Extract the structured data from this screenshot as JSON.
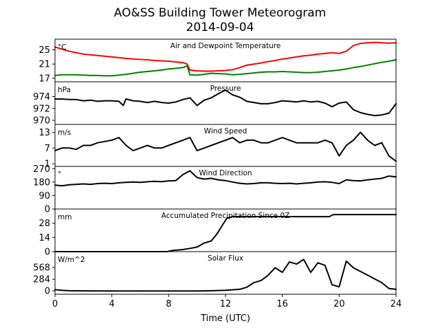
{
  "figure": {
    "title_line1": "AO&SS Building Tower Meteorogram",
    "title_line2": "2014-09-04",
    "xlabel": "Time (UTC)"
  },
  "chart_data": [
    {
      "type": "line",
      "title": "Air and Dewpoint Temperature",
      "unit": "°C",
      "ylim": [
        16,
        28
      ],
      "yticks": [
        17,
        21,
        25
      ],
      "xlim": [
        0,
        24
      ],
      "series": [
        {
          "color": "#ff0000",
          "x": [
            0,
            0.5,
            1,
            1.5,
            2,
            2.5,
            3,
            3.5,
            4,
            4.5,
            5,
            5.5,
            6,
            6.5,
            7,
            7.5,
            8,
            8.5,
            9,
            9.3,
            9.5,
            10,
            10.5,
            11,
            11.5,
            12,
            12.5,
            13,
            13.5,
            14,
            14.5,
            15,
            15.5,
            16,
            16.5,
            17,
            17.5,
            18,
            18.5,
            19,
            19.5,
            20,
            20.5,
            21,
            21.5,
            22,
            22.5,
            23,
            23.5,
            24
          ],
          "values": [
            25.8,
            25.2,
            24.6,
            24.2,
            23.8,
            23.6,
            23.4,
            23.2,
            23.0,
            22.8,
            22.6,
            22.4,
            22.3,
            22.2,
            22.0,
            21.9,
            21.8,
            21.6,
            21.4,
            21.0,
            19.3,
            19.1,
            19.0,
            19.0,
            19.1,
            19.2,
            19.4,
            20.0,
            20.7,
            21.0,
            21.3,
            21.7,
            22.0,
            22.4,
            22.7,
            23.0,
            23.3,
            23.5,
            23.8,
            24.0,
            24.2,
            24.0,
            24.6,
            26.2,
            26.8,
            27.0,
            27.1,
            27.0,
            26.9,
            27.0
          ]
        },
        {
          "color": "#008000",
          "x": [
            0,
            0.5,
            1,
            1.5,
            2,
            2.5,
            3,
            3.5,
            4,
            4.5,
            5,
            5.5,
            6,
            6.5,
            7,
            7.5,
            8,
            8.5,
            9,
            9.3,
            9.5,
            10,
            10.5,
            11,
            11.5,
            12,
            12.5,
            13,
            13.5,
            14,
            14.5,
            15,
            15.5,
            16,
            16.5,
            17,
            17.5,
            18,
            18.5,
            19,
            19.5,
            20,
            20.5,
            21,
            21.5,
            22,
            22.5,
            23,
            23.5,
            24
          ],
          "values": [
            17.8,
            18.0,
            18.0,
            18.0,
            17.9,
            17.8,
            17.8,
            17.7,
            17.7,
            17.9,
            18.1,
            18.4,
            18.7,
            18.9,
            19.1,
            19.3,
            19.6,
            19.8,
            20.0,
            20.5,
            18.0,
            17.9,
            18.1,
            18.4,
            18.3,
            18.2,
            18.0,
            18.1,
            18.3,
            18.5,
            18.7,
            18.8,
            18.8,
            18.9,
            18.8,
            18.7,
            18.6,
            18.6,
            18.7,
            18.9,
            19.1,
            19.3,
            19.6,
            20.0,
            20.3,
            20.7,
            21.1,
            21.5,
            21.8,
            22.2
          ]
        }
      ]
    },
    {
      "type": "line",
      "title": "Pressure",
      "unit": "hPa",
      "ylim": [
        969.3,
        976.5
      ],
      "yticks": [
        970,
        972,
        974
      ],
      "xlim": [
        0,
        24
      ],
      "series": [
        {
          "color": "#000000",
          "x": [
            0,
            0.5,
            1,
            1.5,
            2,
            2.5,
            3,
            3.5,
            4,
            4.5,
            4.8,
            5,
            5.5,
            6,
            6.5,
            7,
            7.5,
            8,
            8.5,
            9,
            9.5,
            10,
            10.5,
            11,
            11.5,
            12,
            12.5,
            13,
            13.5,
            14,
            14.5,
            15,
            15.5,
            16,
            16.5,
            17,
            17.5,
            18,
            18.5,
            19,
            19.5,
            20,
            20.5,
            21,
            21.5,
            22,
            22.5,
            23,
            23.5,
            24
          ],
          "values": [
            973.6,
            973.6,
            973.5,
            973.5,
            973.3,
            973.4,
            973.2,
            973.3,
            973.3,
            973.2,
            972.5,
            973.6,
            973.3,
            973.2,
            973.0,
            973.2,
            973.0,
            972.9,
            973.1,
            973.5,
            973.8,
            972.5,
            973.4,
            973.8,
            974.5,
            975.1,
            974.3,
            973.9,
            973.2,
            973.0,
            972.8,
            972.8,
            973.0,
            973.3,
            973.2,
            973.1,
            973.3,
            973.1,
            973.2,
            972.9,
            972.3,
            972.9,
            973.1,
            971.8,
            971.3,
            971.0,
            970.8,
            970.9,
            971.2,
            972.8
          ]
        }
      ]
    },
    {
      "type": "line",
      "title": "Wind Speed",
      "unit": "m/s",
      "ylim": [
        0,
        16
      ],
      "yticks": [
        1,
        7,
        13
      ],
      "xlim": [
        0,
        24
      ],
      "series": [
        {
          "color": "#000000",
          "x": [
            0,
            0.5,
            1,
            1.5,
            2,
            2.5,
            3,
            3.5,
            4,
            4.5,
            5,
            5.5,
            6,
            6.5,
            7,
            7.5,
            8,
            8.5,
            9,
            9.5,
            10,
            10.5,
            11,
            11.5,
            12,
            12.5,
            13,
            13.5,
            14,
            14.5,
            15,
            15.5,
            16,
            16.5,
            17,
            17.5,
            18,
            18.5,
            19,
            19.5,
            20,
            20.5,
            21,
            21.5,
            22,
            22.5,
            23,
            23.5,
            24
          ],
          "values": [
            6,
            7,
            7,
            6.5,
            8,
            8,
            9,
            9.5,
            10,
            11,
            8,
            6,
            7,
            8,
            7,
            7,
            8,
            9,
            10,
            11,
            6,
            7,
            8,
            9,
            10,
            11,
            9,
            10,
            10,
            9,
            9,
            10,
            11,
            10,
            9,
            9,
            9,
            9,
            10,
            9,
            4,
            8,
            10,
            13,
            10,
            8,
            9,
            4,
            2
          ]
        }
      ]
    },
    {
      "type": "line",
      "title": "Wind Direction",
      "unit": "°",
      "ylim": [
        0,
        285
      ],
      "yticks": [
        0,
        90,
        180,
        270
      ],
      "xlim": [
        0,
        24
      ],
      "series": [
        {
          "color": "#000000",
          "x": [
            0,
            0.5,
            1,
            1.5,
            2,
            2.5,
            3,
            3.5,
            4,
            4.5,
            5,
            5.5,
            6,
            6.5,
            7,
            7.5,
            8,
            8.5,
            9,
            9.5,
            10,
            10.5,
            11,
            11.5,
            12,
            12.5,
            13,
            13.5,
            14,
            14.5,
            15,
            15.5,
            16,
            16.5,
            17,
            17.5,
            18,
            18.5,
            19,
            19.5,
            20,
            20.5,
            21,
            21.5,
            22,
            22.5,
            23,
            23.5,
            24
          ],
          "values": [
            160,
            155,
            162,
            165,
            168,
            165,
            170,
            172,
            170,
            175,
            178,
            180,
            178,
            182,
            185,
            183,
            188,
            190,
            230,
            255,
            210,
            200,
            205,
            195,
            190,
            180,
            172,
            168,
            170,
            175,
            175,
            172,
            170,
            172,
            168,
            172,
            175,
            180,
            182,
            178,
            170,
            195,
            190,
            188,
            195,
            200,
            205,
            220,
            215
          ]
        }
      ]
    },
    {
      "type": "area",
      "title": "Accumulated Precipitation Since 0Z",
      "unit": "mm",
      "ylim": [
        0,
        42
      ],
      "yticks": [
        0,
        14,
        28
      ],
      "xlim": [
        0,
        24
      ],
      "series": [
        {
          "color": "#000000",
          "x": [
            0,
            7.9,
            8.3,
            9.0,
            9.5,
            10.0,
            10.5,
            11.0,
            11.4,
            11.8,
            12.1,
            12.5,
            13.0,
            19.3,
            19.6,
            24
          ],
          "values": [
            0,
            0,
            1.2,
            2.0,
            3.2,
            4.5,
            8.5,
            10.5,
            17.5,
            26.5,
            33.0,
            34.5,
            34.5,
            34.5,
            36.5,
            36.5
          ]
        }
      ]
    },
    {
      "type": "line",
      "title": "Solar Flux",
      "unit": "W/m^2",
      "ylim": [
        -80,
        950
      ],
      "yticks": [
        0,
        284,
        568
      ],
      "xlim": [
        0,
        24
      ],
      "series": [
        {
          "color": "#000000",
          "x": [
            0,
            0.5,
            1,
            2,
            4,
            6,
            8,
            10,
            11,
            12,
            13,
            13.5,
            14,
            14.5,
            15,
            15.5,
            16,
            16.5,
            17,
            17.5,
            18,
            18.5,
            19,
            19.5,
            20,
            20.5,
            21,
            22,
            23,
            23.5,
            24
          ],
          "values": [
            30,
            15,
            5,
            2,
            0,
            0,
            0,
            0,
            5,
            15,
            40,
            90,
            200,
            250,
            380,
            560,
            450,
            700,
            650,
            760,
            450,
            680,
            620,
            150,
            100,
            720,
            560,
            380,
            200,
            60,
            40
          ]
        }
      ]
    }
  ],
  "xaxis": {
    "xlim": [
      0,
      24
    ],
    "ticks": [
      0,
      4,
      8,
      12,
      16,
      20,
      24
    ]
  }
}
